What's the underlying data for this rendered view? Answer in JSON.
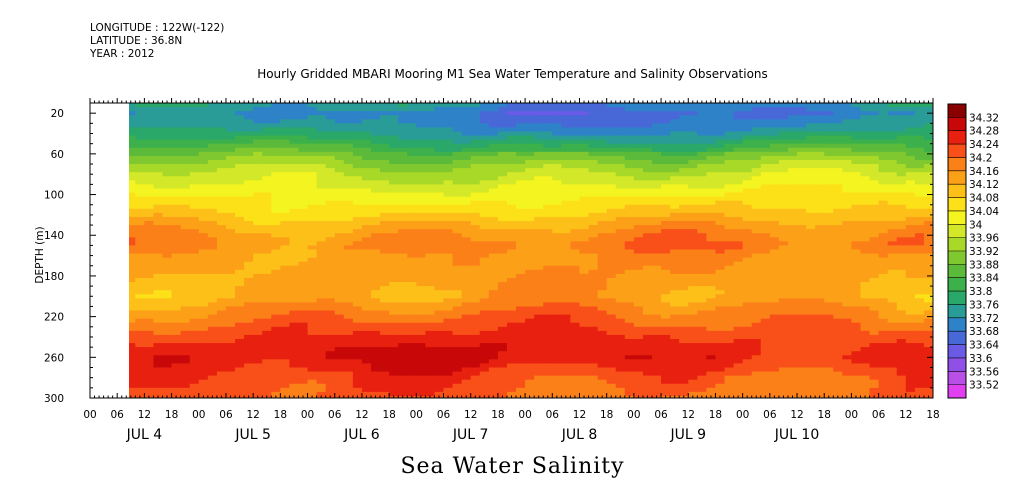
{
  "meta": {
    "longitude": "LONGITUDE : 122W(-122)",
    "latitude": "LATITUDE : 36.8N",
    "year": "YEAR : 2012"
  },
  "footer_label": "Sea Water Salinity",
  "chart_data": {
    "type": "heatmap",
    "title": "Hourly Gridded MBARI Mooring M1 Sea Water Temperature and Salinity Observations",
    "xlabel": "",
    "ylabel": "DEPTH (m)",
    "colorbar_label": "",
    "x_hour_labels": [
      "00",
      "06",
      "12",
      "18",
      "00",
      "06",
      "12",
      "18",
      "00",
      "06",
      "12",
      "18",
      "00",
      "06",
      "12",
      "18",
      "00",
      "06",
      "12",
      "18",
      "00",
      "06",
      "12",
      "18",
      "00",
      "06",
      "12",
      "18",
      "00",
      "06",
      "12",
      "18"
    ],
    "x_day_labels": [
      "JUL  4",
      "JUL  5",
      "JUL  6",
      "JUL  7",
      "JUL  8",
      "JUL  9",
      "JUL 10"
    ],
    "x_range_hours": [
      0,
      186
    ],
    "data_start_hour": 6,
    "y_ticks": [
      20,
      60,
      100,
      140,
      180,
      220,
      260,
      300
    ],
    "y_range": [
      10,
      300
    ],
    "y_inverted": true,
    "depth_profile": {
      "depth": [
        10,
        20,
        30,
        40,
        50,
        60,
        70,
        80,
        90,
        100,
        110,
        120,
        130,
        140,
        150,
        160,
        180,
        200,
        220,
        240,
        250,
        260,
        270,
        280,
        300
      ],
      "salinity": [
        33.74,
        33.7,
        33.72,
        33.76,
        33.82,
        33.88,
        33.93,
        33.97,
        34.0,
        34.03,
        34.06,
        34.09,
        34.13,
        34.16,
        34.18,
        34.15,
        34.14,
        34.13,
        34.19,
        34.24,
        34.26,
        34.27,
        34.25,
        34.22,
        34.2
      ]
    },
    "colorbar": {
      "levels": [
        33.52,
        33.56,
        33.6,
        33.64,
        33.68,
        33.72,
        33.76,
        33.8,
        33.84,
        33.88,
        33.92,
        33.96,
        34,
        34.04,
        34.08,
        34.12,
        34.16,
        34.2,
        34.24,
        34.28,
        34.32
      ],
      "labels": [
        "33.52",
        "33.56",
        "33.6",
        "33.64",
        "33.68",
        "33.72",
        "33.76",
        "33.8",
        "33.84",
        "33.88",
        "33.92",
        "33.96",
        "34",
        "34.04",
        "34.08",
        "34.12",
        "34.16",
        "34.2",
        "34.24",
        "34.28",
        "34.32"
      ],
      "colors": [
        "#e040f0",
        "#b850e8",
        "#9050e8",
        "#6a5ae6",
        "#4868d8",
        "#2e82c8",
        "#2a9c98",
        "#2aa86a",
        "#3cb04a",
        "#5cba3a",
        "#80c830",
        "#a8d828",
        "#d2e828",
        "#f4f420",
        "#fce018",
        "#fcc018",
        "#fca018",
        "#fc8018",
        "#f85018",
        "#e82010",
        "#c80808",
        "#8a0000"
      ]
    },
    "grid": false,
    "legend": "colorbar-right"
  }
}
